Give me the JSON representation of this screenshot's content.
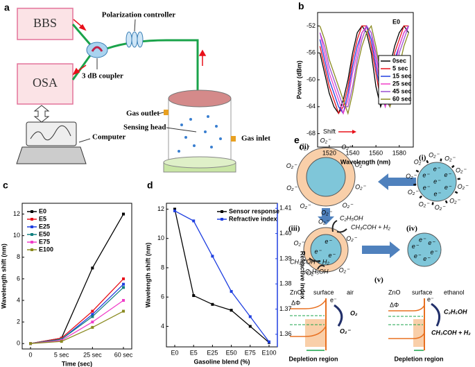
{
  "panel_labels": [
    "a",
    "b",
    "c",
    "d",
    "e"
  ],
  "setup": {
    "sources": [
      "BBS",
      "OSA"
    ],
    "polarization_controller": "Polarization controller",
    "coupler": "3 dB coupler",
    "computer": "Computer",
    "gas_outlet": "Gas outlet",
    "sensing_head": "Sensing head",
    "gas_inlet": "Gas inlet"
  },
  "chart_data": [
    {
      "type": "line",
      "annotation": "E0",
      "shift_label": "Shift",
      "x_label": "Wavelength (nm)",
      "y_label": "Power (dBm)",
      "x": [
        1512,
        1516,
        1520,
        1524,
        1528,
        1532,
        1536,
        1540,
        1544,
        1548,
        1552,
        1556,
        1560,
        1564,
        1568,
        1572,
        1576,
        1580,
        1584,
        1588
      ],
      "xlim": [
        1510,
        1592
      ],
      "xticks": [
        1520,
        1540,
        1560,
        1580
      ],
      "ylim": [
        -70,
        -50
      ],
      "yticks": [
        -52,
        -56,
        -60,
        -64,
        -68
      ],
      "legend": "center right",
      "markers": false,
      "series": [
        {
          "name": "0sec",
          "color": "#000000",
          "values": [
            -56,
            -59,
            -62,
            -64,
            -65,
            -63,
            -60,
            -56,
            -53,
            -52,
            -53,
            -56,
            -61,
            -64,
            -62,
            -58,
            -55,
            -53,
            -52,
            -53
          ]
        },
        {
          "name": "5 sec",
          "color": "#e8101a",
          "values": [
            -55,
            -58,
            -61,
            -63,
            -65,
            -64,
            -61,
            -57,
            -54,
            -52,
            -52,
            -55,
            -59,
            -63,
            -63,
            -60,
            -56,
            -54,
            -52,
            -52
          ]
        },
        {
          "name": "15 sec",
          "color": "#1f3fe0",
          "values": [
            -54,
            -57,
            -60,
            -62,
            -64,
            -65,
            -62,
            -58,
            -55,
            -53,
            -52,
            -54,
            -58,
            -62,
            -64,
            -61,
            -57,
            -55,
            -53,
            -52
          ]
        },
        {
          "name": "25 sec",
          "color": "#f03cc8",
          "values": [
            -53,
            -56,
            -59,
            -61,
            -63,
            -65,
            -63,
            -59,
            -56,
            -53,
            -52,
            -53,
            -57,
            -61,
            -64,
            -62,
            -58,
            -55,
            -53,
            -52
          ]
        },
        {
          "name": "45 sec",
          "color": "#9a4fd0",
          "values": [
            -53,
            -55,
            -58,
            -60,
            -62,
            -64,
            -64,
            -61,
            -57,
            -54,
            -52,
            -53,
            -56,
            -60,
            -63,
            -64,
            -60,
            -56,
            -54,
            -52
          ]
        },
        {
          "name": "60 sec",
          "color": "#8a8a20",
          "values": [
            -52,
            -54,
            -57,
            -59,
            -61,
            -63,
            -65,
            -62,
            -58,
            -55,
            -53,
            -52,
            -55,
            -59,
            -62,
            -64,
            -62,
            -58,
            -55,
            -53
          ]
        }
      ]
    },
    {
      "type": "line",
      "x_label": "Time (sec)",
      "y_label": "Wavelength shift (nm)",
      "categories": [
        "0",
        "5 sec",
        "25 sec",
        "60 sec"
      ],
      "ylim": [
        -0.5,
        13
      ],
      "yticks": [
        0,
        2,
        4,
        6,
        8,
        10,
        12
      ],
      "legend": "upper left",
      "markers": true,
      "series": [
        {
          "name": "E0",
          "color": "#000000",
          "values": [
            0,
            0.5,
            7,
            12
          ]
        },
        {
          "name": "E5",
          "color": "#e8101a",
          "values": [
            0,
            0.5,
            3,
            6
          ]
        },
        {
          "name": "E25",
          "color": "#1f3fe0",
          "values": [
            0,
            0.4,
            2.7,
            5.5
          ]
        },
        {
          "name": "E50",
          "color": "#128080",
          "values": [
            0,
            0.4,
            2.5,
            5.2
          ]
        },
        {
          "name": "E75",
          "color": "#f03cc8",
          "values": [
            0,
            0.3,
            2,
            4
          ]
        },
        {
          "name": "E100",
          "color": "#8a8a20",
          "values": [
            0,
            0.2,
            1.5,
            3
          ]
        }
      ]
    },
    {
      "type": "line",
      "x_label": "Gasoline blend (%)",
      "y_label": "Wavelength shift (nm)",
      "y2_label": "Refractive index",
      "categories": [
        "E0",
        "E5",
        "E25",
        "E50",
        "E75",
        "E100"
      ],
      "ylim": [
        2.6,
        12.4
      ],
      "yticks": [
        4,
        6,
        8,
        10,
        12
      ],
      "y2lim": [
        1.355,
        1.412
      ],
      "y2ticks": [
        1.36,
        1.37,
        1.38,
        1.39,
        {
          "value": 1.4,
          "label": "1.40"
        },
        1.41
      ],
      "legend": "upper right",
      "markers": true,
      "series": [
        {
          "name": "Sensor response",
          "color": "#000000",
          "values": [
            12,
            6.1,
            5.5,
            5.1,
            4,
            2.9
          ]
        },
        {
          "name": "Refractive index",
          "color": "#1f3fe0",
          "axis": "y2",
          "values": [
            1.409,
            1.405,
            1.391,
            1.377,
            1.367,
            1.357
          ]
        }
      ]
    }
  ],
  "mechanism": {
    "stages": [
      "(i)",
      "(ii)",
      "(iii)",
      "(iv)",
      "(v)"
    ],
    "oxygen_ion": "O₂⁻",
    "electron": "e⁻",
    "ethanol": "C₂H₅OH",
    "product": "CH₃COH + H₂",
    "oxygen": "O₂",
    "zno": "ZnO",
    "surface": "surface",
    "air": "air",
    "ethanol_label": "ethanol",
    "barrier": "ΔΦ",
    "depletion": "Depletion region"
  }
}
